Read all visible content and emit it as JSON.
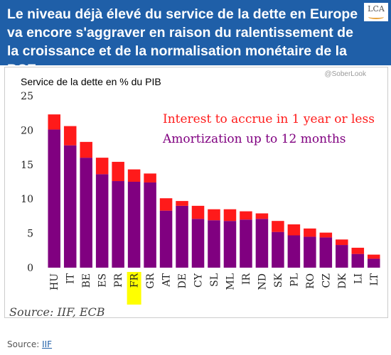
{
  "banner": {
    "title": "Le niveau déjà élevé du service de la dette en Europe va encore s'aggraver en raison du ralentissement de la croissance et de la normalisation monétaire de la BCE",
    "logo_text": "LCA"
  },
  "chart_data": {
    "type": "bar",
    "stacked": true,
    "title": "Service de la dette en % du PIB",
    "watermark": "@SoberLook",
    "categories": [
      "HU",
      "IT",
      "BE",
      "ES",
      "PR",
      "FR",
      "GR",
      "AT",
      "DE",
      "CY",
      "SL",
      "ML",
      "IR",
      "ND",
      "SK",
      "PL",
      "RO",
      "CZ",
      "DK",
      "LI",
      "LT"
    ],
    "highlight_category": "FR",
    "highlight_color": "#ffff00",
    "series": [
      {
        "name": "Amortization up to 12 months",
        "color": "#800080",
        "values": [
          20.1,
          17.8,
          16.0,
          13.6,
          12.6,
          12.5,
          12.4,
          8.3,
          9.0,
          7.1,
          6.9,
          6.8,
          7.0,
          7.1,
          5.2,
          4.7,
          4.5,
          4.4,
          3.3,
          2.0,
          1.3
        ]
      },
      {
        "name": "Interest to accrue in 1 year or less",
        "color": "#ff1a1a",
        "values": [
          2.2,
          2.8,
          2.3,
          2.4,
          2.8,
          1.8,
          1.3,
          1.8,
          0.7,
          1.9,
          1.6,
          1.7,
          1.2,
          0.8,
          1.6,
          1.6,
          1.2,
          0.7,
          0.8,
          0.9,
          0.6
        ]
      }
    ],
    "ylim": [
      0,
      25
    ],
    "yticks": [
      0,
      5,
      10,
      15,
      20,
      25
    ],
    "legend_position": "top-right",
    "grid": false,
    "source_note": "Source: IIF, ECB"
  },
  "footer": {
    "prefix": "Source: ",
    "link_text": "IIF"
  },
  "colors": {
    "banner": "#1f5fa8"
  }
}
